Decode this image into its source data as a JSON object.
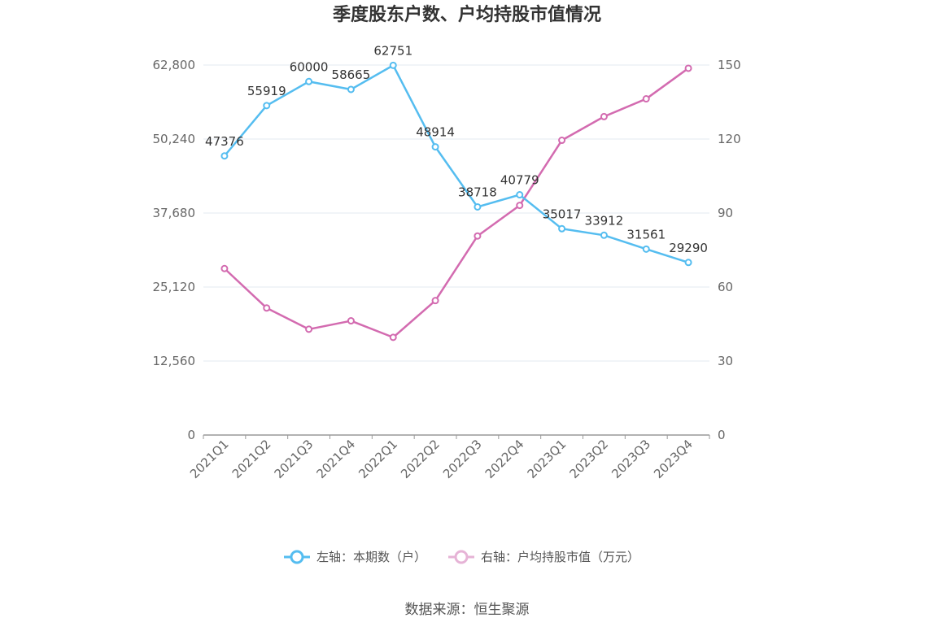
{
  "chart_data": {
    "type": "line",
    "title": "季度股东户数、户均持股市值情况",
    "categories": [
      "2021Q1",
      "2021Q2",
      "2021Q3",
      "2021Q4",
      "2022Q1",
      "2022Q2",
      "2022Q3",
      "2022Q4",
      "2023Q1",
      "2023Q2",
      "2023Q3",
      "2023Q4"
    ],
    "series": [
      {
        "name": "左轴：本期数（户）",
        "axis": "left",
        "color": "#55bdf0",
        "values": [
          47376,
          55919,
          60000,
          58665,
          62751,
          48914,
          38718,
          40779,
          35017,
          33912,
          31561,
          29290
        ],
        "labels": [
          "47376",
          "55919",
          "60000",
          "58665",
          "62751",
          "48914",
          "38718",
          "40779",
          "35017",
          "33912",
          "31561",
          "29290"
        ]
      },
      {
        "name": "右轴：户均持股市值（万元）",
        "axis": "right",
        "color": "#d36bb0",
        "values": [
          67.5,
          51.5,
          42.9,
          46.3,
          39.6,
          54.5,
          80.7,
          93.1,
          119.5,
          129.1,
          136.3,
          148.7
        ]
      }
    ],
    "left_axis": {
      "ylim": [
        0,
        62800
      ],
      "ticks": [
        "0",
        "12,560",
        "25,120",
        "37,680",
        "50,240",
        "62,800"
      ],
      "tick_values": [
        0,
        12560,
        25120,
        37680,
        50240,
        62800
      ]
    },
    "right_axis": {
      "ylim": [
        0,
        150
      ],
      "ticks": [
        "0",
        "30",
        "60",
        "90",
        "120",
        "150"
      ],
      "tick_values": [
        0,
        30,
        60,
        90,
        120,
        150
      ]
    },
    "grid": true,
    "legend_position": "bottom"
  },
  "source_text": "数据来源：恒生聚源"
}
